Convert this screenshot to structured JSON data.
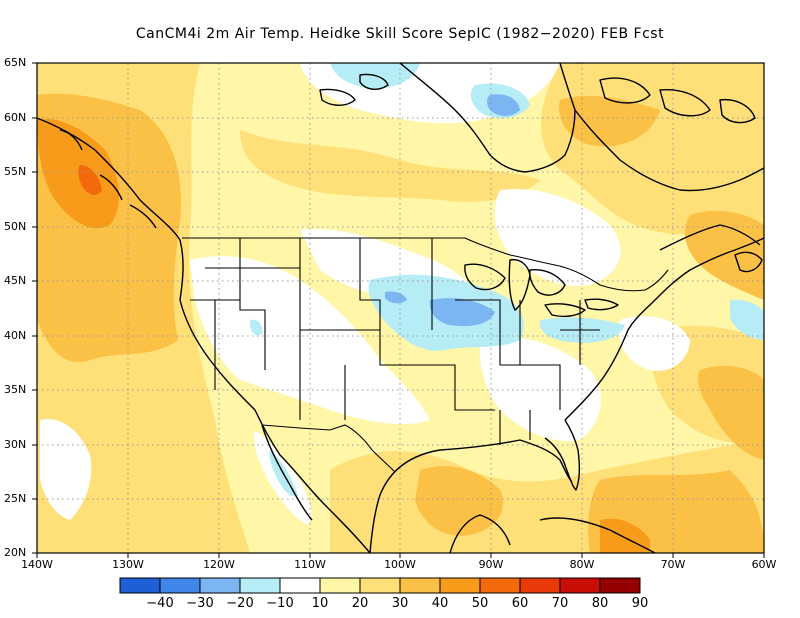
{
  "title": "CanCM4i  2m Air Temp. Heidke Skill Score SepIC (1982−2020) FEB Fcst",
  "axes": {
    "lat_labels": [
      "65N",
      "60N",
      "55N",
      "50N",
      "45N",
      "40N",
      "35N",
      "30N",
      "25N",
      "20N"
    ],
    "lon_labels": [
      "140W",
      "130W",
      "120W",
      "110W",
      "100W",
      "90W",
      "80W",
      "70W",
      "60W"
    ],
    "lat_range": [
      20,
      65
    ],
    "lon_range": [
      -140,
      -60
    ],
    "grid": "dotted"
  },
  "colorbar": {
    "labels": [
      "−40",
      "−30",
      "−20",
      "−10",
      "10",
      "20",
      "30",
      "40",
      "50",
      "60",
      "70",
      "80",
      "90"
    ],
    "colors": [
      "#1f5fd6",
      "#3f86e8",
      "#7bb6f2",
      "#b6ecf5",
      "#ffffff",
      "#fff6a8",
      "#ffe078",
      "#fbc046",
      "#f89b1a",
      "#f26a0a",
      "#e83a08",
      "#c90e05",
      "#960000"
    ]
  },
  "field_colors": {
    "c10": "#ffffff",
    "c20": "#fff6a8",
    "c30": "#ffe078",
    "c40": "#fbc046",
    "c50": "#f89b1a",
    "c60": "#f26a0a",
    "cm10": "#b6ecf5",
    "cm20": "#7bb6f2"
  }
}
